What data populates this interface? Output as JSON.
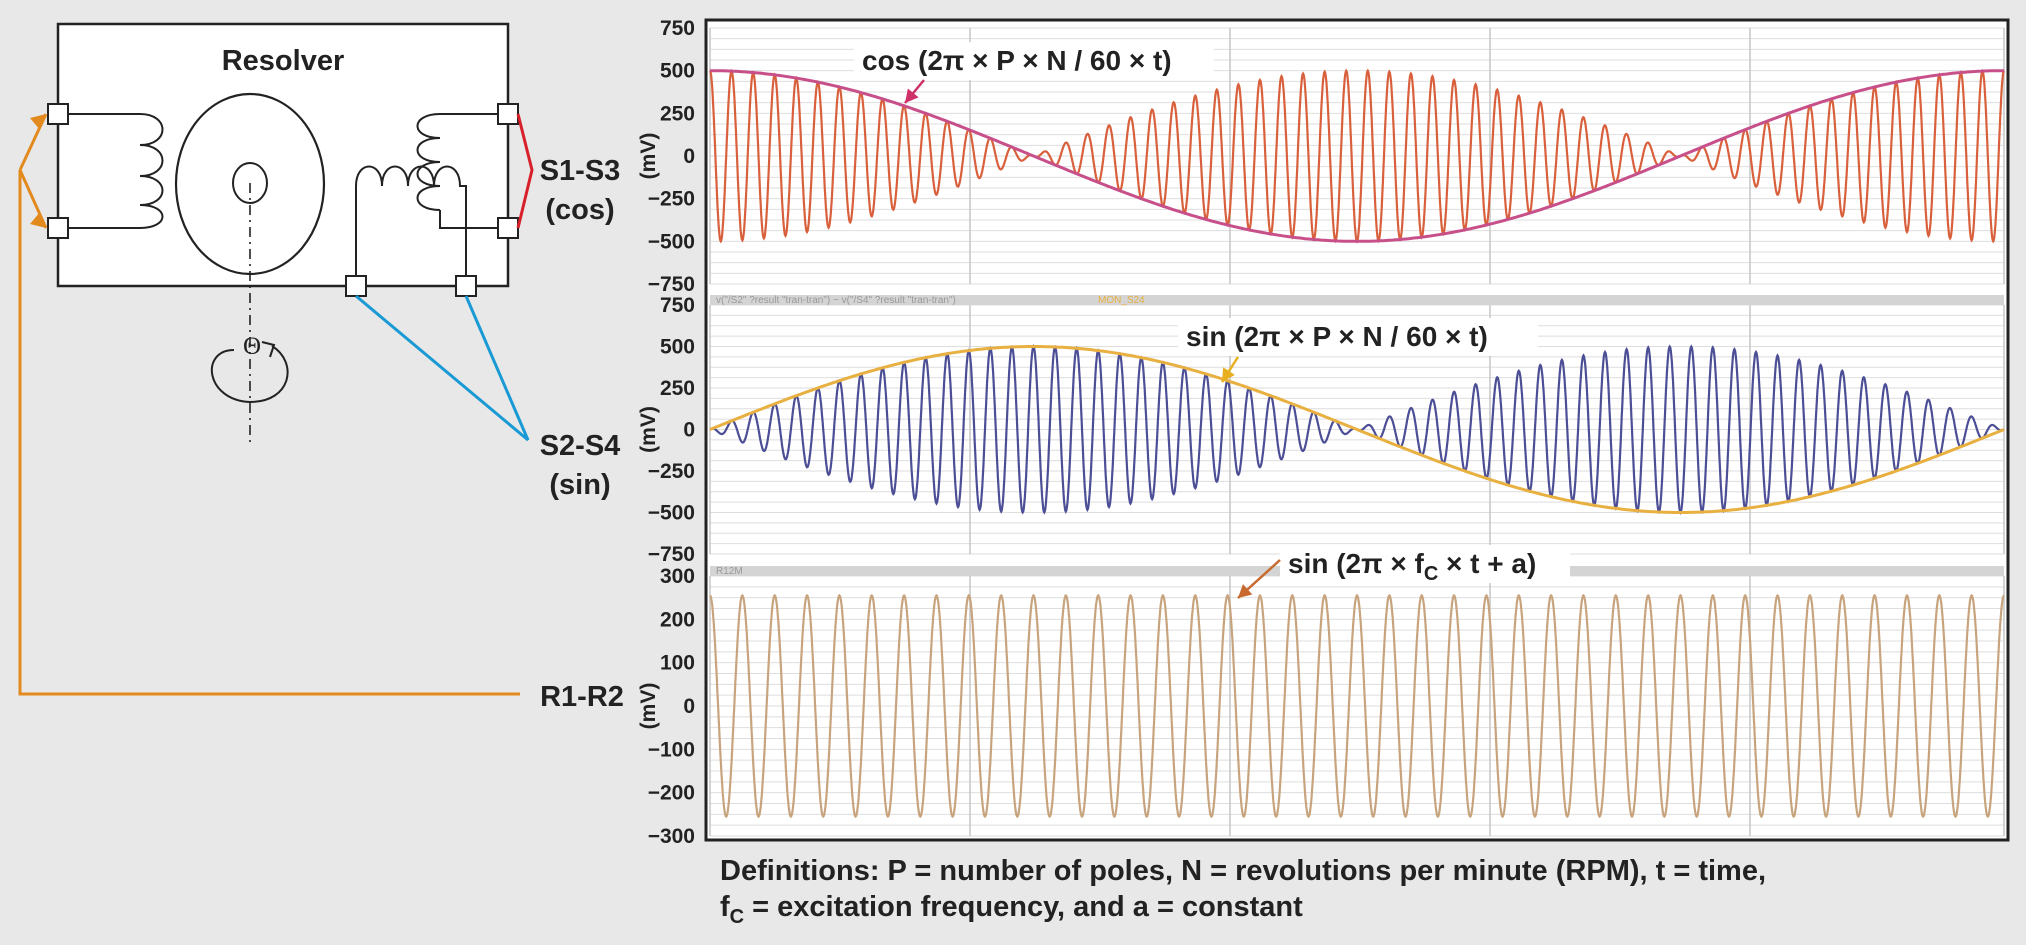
{
  "resolver": {
    "title": "Resolver",
    "theta": "Θ"
  },
  "side_labels": {
    "s1s3_line1": "S1-S3",
    "s1s3_line2": "(cos)",
    "s2s4_line1": "S2-S4",
    "s2s4_line2": "(sin)",
    "r1r2": "R1-R2"
  },
  "plots": [
    {
      "id": "cos",
      "ticks": [
        "750",
        "500",
        "250",
        "0",
        "−250",
        "−500",
        "−750"
      ],
      "tick_values": [
        750,
        500,
        250,
        0,
        -250,
        -500,
        -750
      ],
      "ylim": [
        -750,
        750
      ],
      "unit": "(mV)",
      "annotation": "cos (2π × P × N / 60 × t)",
      "amplitude": 500,
      "envelope": "cos",
      "carrier_cycles": 60,
      "envelope_cycles": 1,
      "carrier_color": "#d9603c",
      "envelope_color": "#c8508a",
      "arrow_color": "#d0306a",
      "trace_legend": "",
      "trace_legend2": ""
    },
    {
      "id": "sin",
      "ticks": [
        "750",
        "500",
        "250",
        "0",
        "−250",
        "−500",
        "−750"
      ],
      "tick_values": [
        750,
        500,
        250,
        0,
        -250,
        -500,
        -750
      ],
      "ylim": [
        -750,
        750
      ],
      "unit": "(mV)",
      "annotation": "sin (2π × P × N / 60 × t)",
      "amplitude": 500,
      "envelope": "sin",
      "carrier_cycles": 60,
      "envelope_cycles": 1,
      "carrier_color": "#4c4e96",
      "envelope_color": "#e8b040",
      "arrow_color": "#e8b020",
      "trace_legend": "v(\"/S2\" ?result \"tran-tran\") − v(\"/S4\" ?result \"tran-tran\")",
      "trace_legend2": "MON_S24"
    },
    {
      "id": "excitation",
      "ticks": [
        "300",
        "200",
        "100",
        "0",
        "−100",
        "−200",
        "−300"
      ],
      "tick_values": [
        300,
        200,
        100,
        0,
        -100,
        -200,
        -300
      ],
      "ylim": [
        -300,
        300
      ],
      "unit": "(mV)",
      "annotation_main": "sin (2π × f",
      "annotation_sub": "C",
      "annotation_tail": " × t + a)",
      "amplitude": 255,
      "envelope": "none",
      "carrier_cycles": 40,
      "envelope_cycles": 0,
      "carrier_color": "#c7a47e",
      "envelope_color": "",
      "arrow_color": "#c86a30",
      "trace_legend": "R12M",
      "trace_legend2": ""
    }
  ],
  "definitions": {
    "line1": "Definitions: P = number of poles, N = revolutions per minute (RPM), t = time,",
    "line2_main": "f",
    "line2_sub": "C",
    "line2_tail": " = excitation frequency, and a = constant"
  },
  "colors": {
    "background": "#e8e8e8",
    "plot_bg": "#ffffff",
    "grid": "#c8c8c8",
    "frame": "#222222",
    "cos_wire": "#d8202a",
    "sin_wire": "#1a9ad4",
    "ref_wire": "#e38a1e"
  }
}
